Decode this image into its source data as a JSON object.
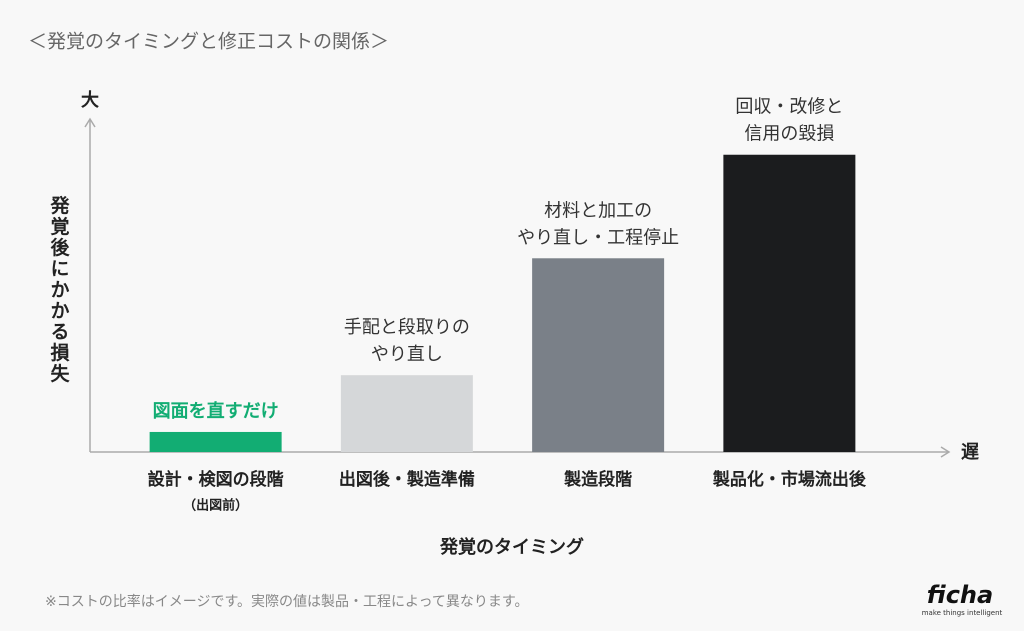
{
  "chart_data": {
    "type": "bar",
    "title": "＜発覚のタイミングと修正コストの関係＞",
    "y_label": "発覚後にかかる損失",
    "y_axis_end": "大",
    "x_axis_end": "遅",
    "x_label": "発覚のタイミング",
    "categories": [
      "設計・検図の段階",
      "出図後・製造準備",
      "製造段階",
      "製品化・市場流出後"
    ],
    "category_notes": [
      "（出図前）",
      null,
      null,
      null
    ],
    "values": [
      6,
      23,
      58,
      89
    ],
    "colors": [
      "#12ad73",
      "#d5d7d9",
      "#7a8088",
      "#1b1c1e"
    ],
    "annotations": [
      [
        "図面を直すだけ"
      ],
      [
        "手配と段取りの",
        "やり直し"
      ],
      [
        "材料と加工の",
        "やり直し・工程停止"
      ],
      [
        "回収・改修と",
        "信用の毀損"
      ]
    ],
    "ylim": [
      0,
      100
    ],
    "footnote": "※コストの比率はイメージです。実際の値は製品・工程によって異なります。",
    "logo": {
      "name": "ficha",
      "tagline": "make things intelligent"
    }
  }
}
